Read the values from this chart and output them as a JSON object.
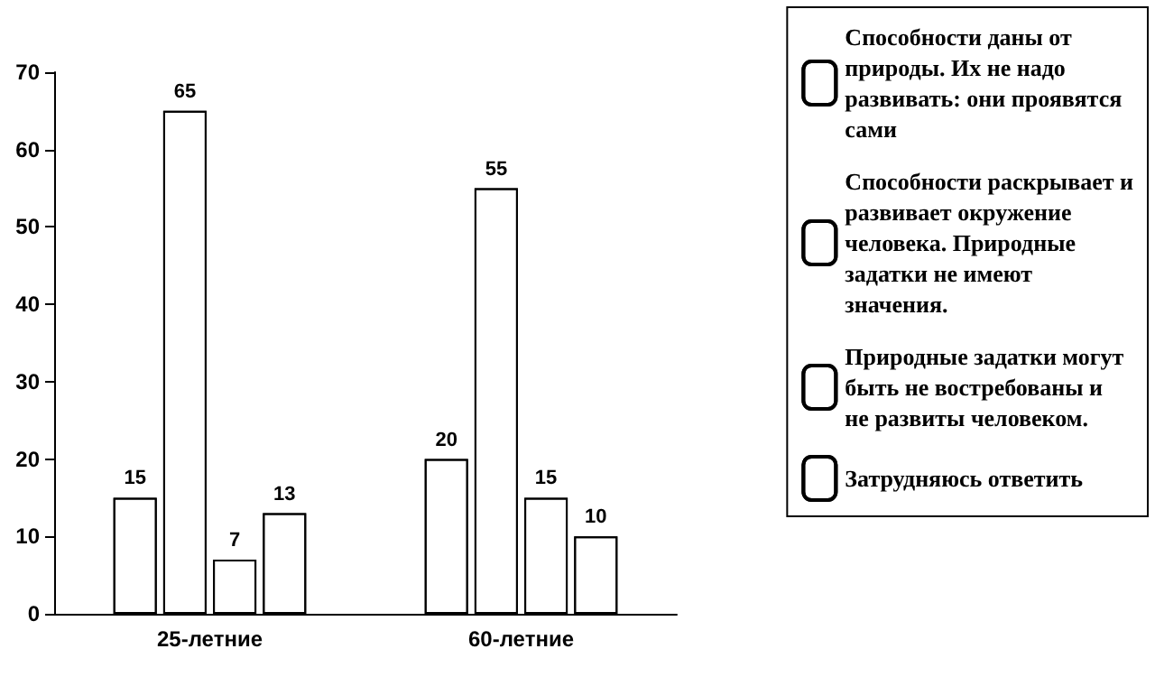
{
  "chart_data": {
    "type": "bar",
    "categories": [
      "25-летние",
      "60-летние"
    ],
    "series": [
      {
        "name": "Способности даны от природы. Их не надо развивать: они проявятся сами",
        "color": "#ffffff",
        "values": [
          15,
          20
        ]
      },
      {
        "name": "Способности раскрывает и развивает окружение человека. Природные задатки не имеют значения.",
        "color": "#ffffff",
        "values": [
          65,
          55
        ]
      },
      {
        "name": "Природные задатки могут быть не востребованы и не развиты человеком.",
        "color": "#ffffff",
        "values": [
          7,
          15
        ]
      },
      {
        "name": "Затрудняюсь ответить",
        "color": "#ffffff",
        "values": [
          13,
          10
        ]
      }
    ],
    "ylim": [
      0,
      70
    ],
    "yticks": [
      0,
      10,
      20,
      30,
      40,
      50,
      60,
      70
    ],
    "grid": false,
    "legend": "right",
    "data_labels": true
  }
}
